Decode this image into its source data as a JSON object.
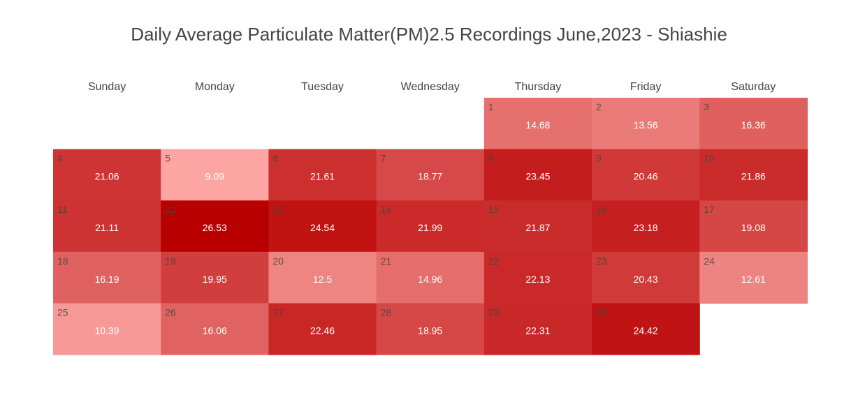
{
  "chart_data": {
    "type": "heatmap",
    "title": "Daily Average Particulate Matter(PM)2.5 Recordings June,2023 - Shiashie",
    "weekdays": [
      "Sunday",
      "Monday",
      "Tuesday",
      "Wednesday",
      "Thursday",
      "Friday",
      "Saturday"
    ],
    "first_weekday_index": 4,
    "color_scale": {
      "min_value": 9.09,
      "max_value": 26.53,
      "low_color": "#fca5a2",
      "high_color": "#b80000"
    },
    "days": [
      {
        "day": 1,
        "value": 14.68
      },
      {
        "day": 2,
        "value": 13.56
      },
      {
        "day": 3,
        "value": 16.36
      },
      {
        "day": 4,
        "value": 21.06
      },
      {
        "day": 5,
        "value": 9.09
      },
      {
        "day": 6,
        "value": 21.61
      },
      {
        "day": 7,
        "value": 18.77
      },
      {
        "day": 8,
        "value": 23.45
      },
      {
        "day": 9,
        "value": 20.46
      },
      {
        "day": 10,
        "value": 21.86
      },
      {
        "day": 11,
        "value": 21.11
      },
      {
        "day": 12,
        "value": 26.53
      },
      {
        "day": 13,
        "value": 24.54
      },
      {
        "day": 14,
        "value": 21.99
      },
      {
        "day": 15,
        "value": 21.87
      },
      {
        "day": 16,
        "value": 23.18
      },
      {
        "day": 17,
        "value": 19.08
      },
      {
        "day": 18,
        "value": 16.19
      },
      {
        "day": 19,
        "value": 19.95
      },
      {
        "day": 20,
        "value": 12.5
      },
      {
        "day": 21,
        "value": 14.96
      },
      {
        "day": 22,
        "value": 22.13
      },
      {
        "day": 23,
        "value": 20.43
      },
      {
        "day": 24,
        "value": 12.61
      },
      {
        "day": 25,
        "value": 10.39
      },
      {
        "day": 26,
        "value": 16.06
      },
      {
        "day": 27,
        "value": 22.46
      },
      {
        "day": 28,
        "value": 18.95
      },
      {
        "day": 29,
        "value": 22.31
      },
      {
        "day": 30,
        "value": 24.42
      }
    ]
  }
}
